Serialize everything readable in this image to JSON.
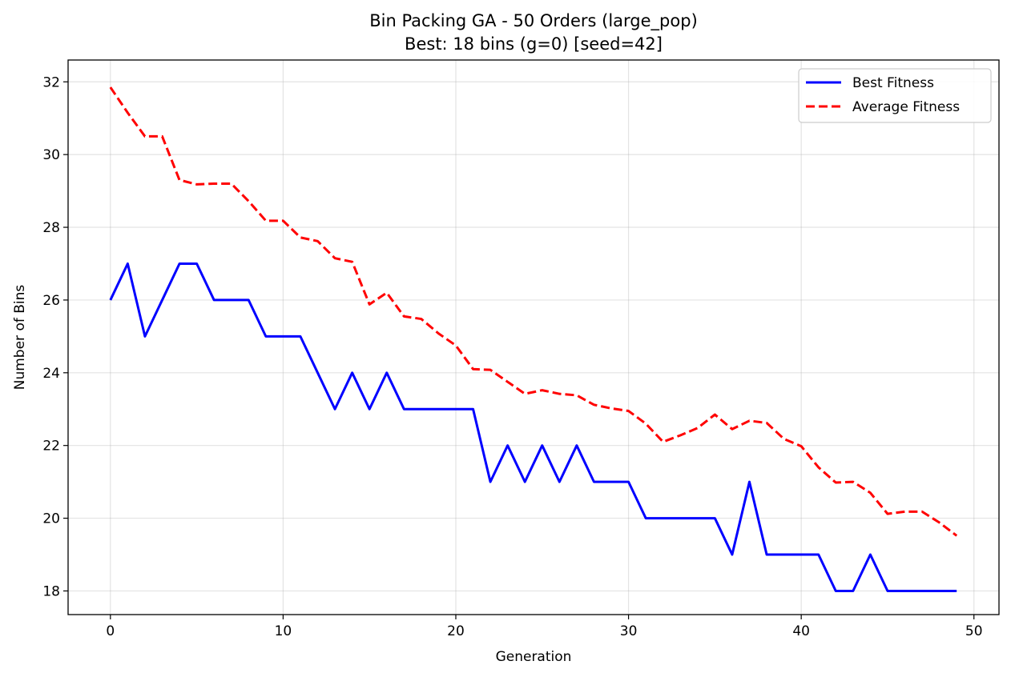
{
  "chart_data": {
    "type": "line",
    "title": "Bin Packing GA - 50 Orders (large_pop)",
    "subtitle": "Best: 18 bins (g=0) [seed=42]",
    "xlabel": "Generation",
    "ylabel": "Number of Bins",
    "xlim": [
      -2.45,
      51.45
    ],
    "ylim": [
      17.35,
      32.6
    ],
    "xticks": [
      0,
      10,
      20,
      30,
      40,
      50
    ],
    "yticks": [
      18,
      20,
      22,
      24,
      26,
      28,
      30,
      32
    ],
    "grid": true,
    "legend_position": "top-right",
    "x": [
      0,
      1,
      2,
      3,
      4,
      5,
      6,
      7,
      8,
      9,
      10,
      11,
      12,
      13,
      14,
      15,
      16,
      17,
      18,
      19,
      20,
      21,
      22,
      23,
      24,
      25,
      26,
      27,
      28,
      29,
      30,
      31,
      32,
      33,
      34,
      35,
      36,
      37,
      38,
      39,
      40,
      41,
      42,
      43,
      44,
      45,
      46,
      47,
      48,
      49
    ],
    "series": [
      {
        "name": "Best Fitness",
        "color": "#0000ff",
        "style": "solid",
        "values": [
          26,
          27,
          25,
          26,
          27,
          27,
          26,
          26,
          26,
          25,
          25,
          25,
          24,
          23,
          24,
          23,
          24,
          23,
          23,
          23,
          23,
          23,
          21,
          22,
          21,
          22,
          21,
          22,
          21,
          21,
          21,
          20,
          20,
          20,
          20,
          20,
          19,
          21,
          19,
          19,
          19,
          19,
          18,
          18,
          19,
          18,
          18,
          18,
          18,
          18
        ]
      },
      {
        "name": "Average Fitness",
        "color": "#ff0000",
        "style": "dashed",
        "values": [
          31.85,
          31.15,
          30.5,
          30.5,
          29.3,
          29.18,
          29.2,
          29.2,
          28.72,
          28.18,
          28.18,
          27.72,
          27.62,
          27.15,
          27.05,
          25.88,
          26.2,
          25.55,
          25.48,
          25.08,
          24.75,
          24.1,
          24.08,
          23.75,
          23.42,
          23.52,
          23.42,
          23.38,
          23.12,
          23.02,
          22.95,
          22.6,
          22.1,
          22.28,
          22.48,
          22.85,
          22.45,
          22.68,
          22.62,
          22.18,
          21.98,
          21.4,
          20.98,
          21.0,
          20.7,
          20.12,
          20.18,
          20.18,
          19.88,
          19.52
        ]
      }
    ]
  }
}
